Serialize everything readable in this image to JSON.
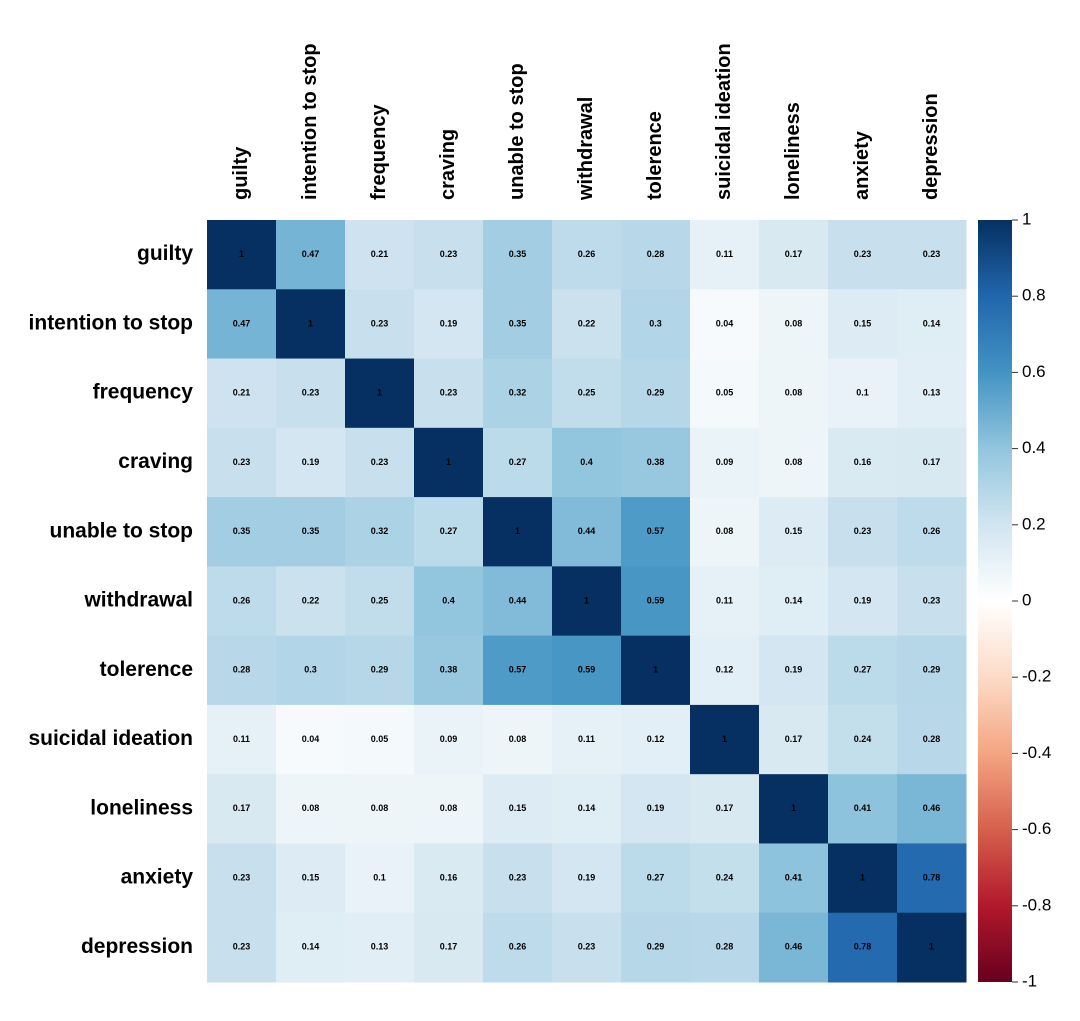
{
  "chart_data": {
    "type": "heatmap",
    "categories": [
      "guilty",
      "intention to stop",
      "frequency",
      "craving",
      "unable to stop",
      "withdrawal",
      "tolerence",
      "suicidal ideation",
      "loneliness",
      "anxiety",
      "depression"
    ],
    "values": [
      [
        1,
        0.47,
        0.21,
        0.23,
        0.35,
        0.26,
        0.28,
        0.11,
        0.17,
        0.23,
        0.23
      ],
      [
        0.47,
        1,
        0.23,
        0.19,
        0.35,
        0.22,
        0.3,
        0.04,
        0.08,
        0.15,
        0.14
      ],
      [
        0.21,
        0.23,
        1,
        0.23,
        0.32,
        0.25,
        0.29,
        0.05,
        0.08,
        0.1,
        0.13
      ],
      [
        0.23,
        0.19,
        0.23,
        1,
        0.27,
        0.4,
        0.38,
        0.09,
        0.08,
        0.16,
        0.17
      ],
      [
        0.35,
        0.35,
        0.32,
        0.27,
        1,
        0.44,
        0.57,
        0.08,
        0.15,
        0.23,
        0.26
      ],
      [
        0.26,
        0.22,
        0.25,
        0.4,
        0.44,
        1,
        0.59,
        0.11,
        0.14,
        0.19,
        0.23
      ],
      [
        0.28,
        0.3,
        0.29,
        0.38,
        0.57,
        0.59,
        1,
        0.12,
        0.19,
        0.27,
        0.29
      ],
      [
        0.11,
        0.04,
        0.05,
        0.09,
        0.08,
        0.11,
        0.12,
        1,
        0.17,
        0.24,
        0.28
      ],
      [
        0.17,
        0.08,
        0.08,
        0.08,
        0.15,
        0.14,
        0.19,
        0.17,
        1,
        0.41,
        0.46
      ],
      [
        0.23,
        0.15,
        0.1,
        0.16,
        0.23,
        0.19,
        0.27,
        0.24,
        0.41,
        1,
        0.78
      ],
      [
        0.23,
        0.14,
        0.13,
        0.17,
        0.26,
        0.23,
        0.29,
        0.28,
        0.46,
        0.78,
        1
      ]
    ],
    "clim": [
      -1,
      1
    ],
    "cticks": [
      1,
      0.8,
      0.6,
      0.4,
      0.2,
      0,
      -0.2,
      -0.4,
      -0.6,
      -0.8,
      -1
    ],
    "colormap": [
      "#67001F",
      "#B2182B",
      "#D6604D",
      "#F4A582",
      "#FDDBC7",
      "#FFFFFF",
      "#D1E5F0",
      "#92C5DE",
      "#4393C3",
      "#2166AC",
      "#053061"
    ]
  }
}
